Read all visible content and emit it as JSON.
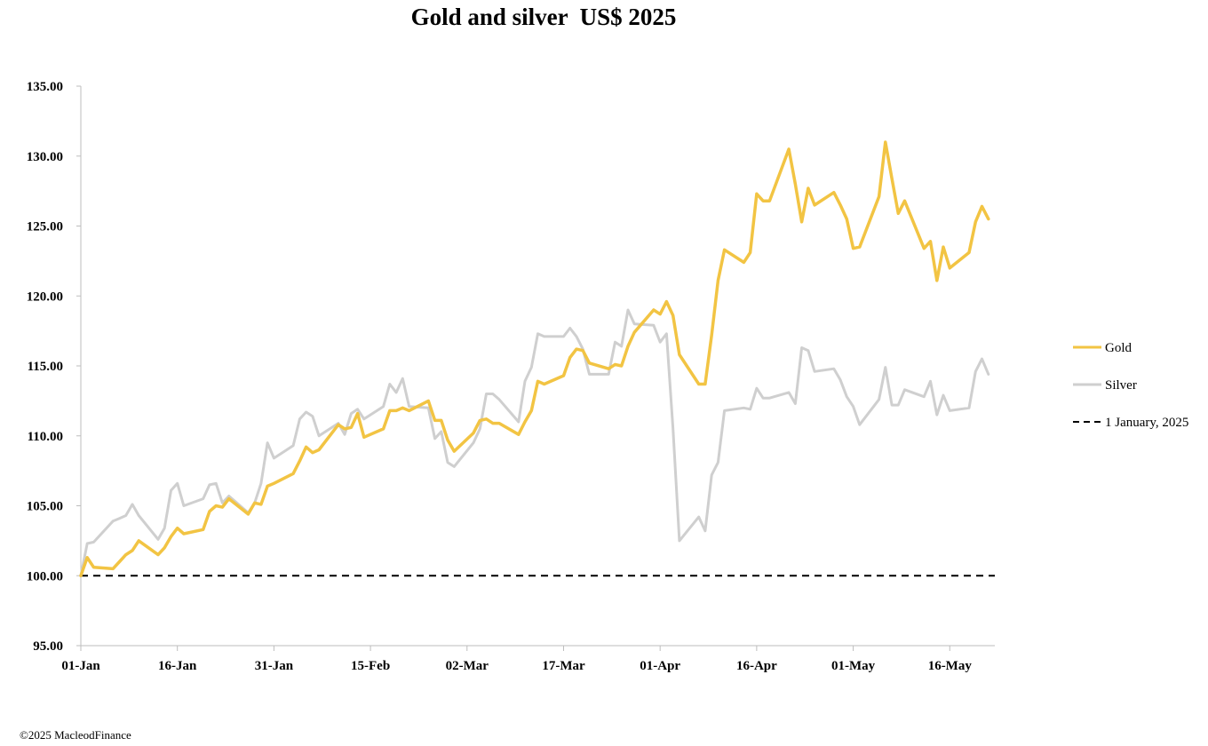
{
  "chart_data": {
    "type": "line",
    "title": "Gold and silver  US$ 2025",
    "xlabel": "",
    "ylabel": "",
    "ylim": [
      95,
      135
    ],
    "yticks": [
      "95.00",
      "100.00",
      "105.00",
      "110.00",
      "115.00",
      "120.00",
      "125.00",
      "130.00",
      "135.00"
    ],
    "xlim": [
      "2025-01-01",
      "2025-05-23"
    ],
    "xticks": [
      "01-Jan",
      "16-Jan",
      "31-Jan",
      "15-Feb",
      "02-Mar",
      "17-Mar",
      "01-Apr",
      "16-Apr",
      "01-May",
      "16-May"
    ],
    "grid": false,
    "legend_position": "right",
    "series": [
      {
        "name": "Gold",
        "color": "#F2C443",
        "points": [
          [
            "2025-01-01",
            100.0
          ],
          [
            "2025-01-02",
            101.3
          ],
          [
            "2025-01-03",
            100.6
          ],
          [
            "2025-01-06",
            100.5
          ],
          [
            "2025-01-07",
            101.0
          ],
          [
            "2025-01-08",
            101.5
          ],
          [
            "2025-01-09",
            101.8
          ],
          [
            "2025-01-10",
            102.5
          ],
          [
            "2025-01-13",
            101.5
          ],
          [
            "2025-01-14",
            102.0
          ],
          [
            "2025-01-15",
            102.8
          ],
          [
            "2025-01-16",
            103.4
          ],
          [
            "2025-01-17",
            103.0
          ],
          [
            "2025-01-20",
            103.3
          ],
          [
            "2025-01-21",
            104.6
          ],
          [
            "2025-01-22",
            105.0
          ],
          [
            "2025-01-23",
            104.9
          ],
          [
            "2025-01-24",
            105.5
          ],
          [
            "2025-01-27",
            104.4
          ],
          [
            "2025-01-28",
            105.2
          ],
          [
            "2025-01-29",
            105.1
          ],
          [
            "2025-01-30",
            106.4
          ],
          [
            "2025-01-31",
            106.6
          ],
          [
            "2025-02-03",
            107.3
          ],
          [
            "2025-02-04",
            108.2
          ],
          [
            "2025-02-05",
            109.2
          ],
          [
            "2025-02-06",
            108.8
          ],
          [
            "2025-02-07",
            109.0
          ],
          [
            "2025-02-10",
            110.8
          ],
          [
            "2025-02-11",
            110.5
          ],
          [
            "2025-02-12",
            110.6
          ],
          [
            "2025-02-13",
            111.6
          ],
          [
            "2025-02-14",
            109.9
          ],
          [
            "2025-02-17",
            110.5
          ],
          [
            "2025-02-18",
            111.8
          ],
          [
            "2025-02-19",
            111.8
          ],
          [
            "2025-02-20",
            112.0
          ],
          [
            "2025-02-21",
            111.8
          ],
          [
            "2025-02-24",
            112.5
          ],
          [
            "2025-02-25",
            111.1
          ],
          [
            "2025-02-26",
            111.1
          ],
          [
            "2025-02-27",
            109.7
          ],
          [
            "2025-02-28",
            108.9
          ],
          [
            "2025-03-03",
            110.2
          ],
          [
            "2025-03-04",
            111.1
          ],
          [
            "2025-03-05",
            111.2
          ],
          [
            "2025-03-06",
            110.9
          ],
          [
            "2025-03-07",
            110.9
          ],
          [
            "2025-03-10",
            110.1
          ],
          [
            "2025-03-11",
            111.0
          ],
          [
            "2025-03-12",
            111.8
          ],
          [
            "2025-03-13",
            113.9
          ],
          [
            "2025-03-14",
            113.7
          ],
          [
            "2025-03-17",
            114.3
          ],
          [
            "2025-03-18",
            115.6
          ],
          [
            "2025-03-19",
            116.2
          ],
          [
            "2025-03-20",
            116.1
          ],
          [
            "2025-03-21",
            115.2
          ],
          [
            "2025-03-24",
            114.8
          ],
          [
            "2025-03-25",
            115.1
          ],
          [
            "2025-03-26",
            115.0
          ],
          [
            "2025-03-27",
            116.4
          ],
          [
            "2025-03-28",
            117.4
          ],
          [
            "2025-03-31",
            119.0
          ],
          [
            "2025-04-01",
            118.7
          ],
          [
            "2025-04-02",
            119.6
          ],
          [
            "2025-04-03",
            118.6
          ],
          [
            "2025-04-04",
            115.8
          ],
          [
            "2025-04-07",
            113.7
          ],
          [
            "2025-04-08",
            113.7
          ],
          [
            "2025-04-09",
            117.2
          ],
          [
            "2025-04-10",
            121.1
          ],
          [
            "2025-04-11",
            123.3
          ],
          [
            "2025-04-14",
            122.4
          ],
          [
            "2025-04-15",
            123.1
          ],
          [
            "2025-04-16",
            127.3
          ],
          [
            "2025-04-17",
            126.8
          ],
          [
            "2025-04-18",
            126.8
          ],
          [
            "2025-04-21",
            130.5
          ],
          [
            "2025-04-22",
            128.0
          ],
          [
            "2025-04-23",
            125.3
          ],
          [
            "2025-04-24",
            127.7
          ],
          [
            "2025-04-25",
            126.5
          ],
          [
            "2025-04-28",
            127.4
          ],
          [
            "2025-04-29",
            126.5
          ],
          [
            "2025-04-30",
            125.5
          ],
          [
            "2025-05-01",
            123.4
          ],
          [
            "2025-05-02",
            123.5
          ],
          [
            "2025-05-05",
            127.1
          ],
          [
            "2025-05-06",
            131.0
          ],
          [
            "2025-05-07",
            128.4
          ],
          [
            "2025-05-08",
            125.9
          ],
          [
            "2025-05-09",
            126.8
          ],
          [
            "2025-05-12",
            123.4
          ],
          [
            "2025-05-13",
            123.9
          ],
          [
            "2025-05-14",
            121.1
          ],
          [
            "2025-05-15",
            123.5
          ],
          [
            "2025-05-16",
            122.0
          ],
          [
            "2025-05-19",
            123.1
          ],
          [
            "2025-05-20",
            125.3
          ],
          [
            "2025-05-21",
            126.4
          ],
          [
            "2025-05-22",
            125.5
          ]
        ]
      },
      {
        "name": "Silver",
        "color": "#CFCFCF",
        "points": [
          [
            "2025-01-01",
            100.0
          ],
          [
            "2025-01-02",
            102.3
          ],
          [
            "2025-01-03",
            102.4
          ],
          [
            "2025-01-06",
            103.9
          ],
          [
            "2025-01-07",
            104.1
          ],
          [
            "2025-01-08",
            104.3
          ],
          [
            "2025-01-09",
            105.1
          ],
          [
            "2025-01-10",
            104.3
          ],
          [
            "2025-01-13",
            102.6
          ],
          [
            "2025-01-14",
            103.4
          ],
          [
            "2025-01-15",
            106.1
          ],
          [
            "2025-01-16",
            106.6
          ],
          [
            "2025-01-17",
            105.0
          ],
          [
            "2025-01-20",
            105.5
          ],
          [
            "2025-01-21",
            106.5
          ],
          [
            "2025-01-22",
            106.6
          ],
          [
            "2025-01-23",
            105.2
          ],
          [
            "2025-01-24",
            105.7
          ],
          [
            "2025-01-27",
            104.5
          ],
          [
            "2025-01-28",
            105.2
          ],
          [
            "2025-01-29",
            106.6
          ],
          [
            "2025-01-30",
            109.5
          ],
          [
            "2025-01-31",
            108.4
          ],
          [
            "2025-02-03",
            109.3
          ],
          [
            "2025-02-04",
            111.2
          ],
          [
            "2025-02-05",
            111.7
          ],
          [
            "2025-02-06",
            111.4
          ],
          [
            "2025-02-07",
            110.0
          ],
          [
            "2025-02-10",
            110.9
          ],
          [
            "2025-02-11",
            110.1
          ],
          [
            "2025-02-12",
            111.6
          ],
          [
            "2025-02-13",
            111.9
          ],
          [
            "2025-02-14",
            111.2
          ],
          [
            "2025-02-17",
            112.1
          ],
          [
            "2025-02-18",
            113.7
          ],
          [
            "2025-02-19",
            113.1
          ],
          [
            "2025-02-20",
            114.1
          ],
          [
            "2025-02-21",
            112.1
          ],
          [
            "2025-02-24",
            112.0
          ],
          [
            "2025-02-25",
            109.8
          ],
          [
            "2025-02-26",
            110.3
          ],
          [
            "2025-02-27",
            108.1
          ],
          [
            "2025-02-28",
            107.8
          ],
          [
            "2025-03-03",
            109.5
          ],
          [
            "2025-03-04",
            110.5
          ],
          [
            "2025-03-05",
            113.0
          ],
          [
            "2025-03-06",
            113.0
          ],
          [
            "2025-03-07",
            112.6
          ],
          [
            "2025-03-10",
            111.0
          ],
          [
            "2025-03-11",
            113.9
          ],
          [
            "2025-03-12",
            114.9
          ],
          [
            "2025-03-13",
            117.3
          ],
          [
            "2025-03-14",
            117.1
          ],
          [
            "2025-03-17",
            117.1
          ],
          [
            "2025-03-18",
            117.7
          ],
          [
            "2025-03-19",
            117.1
          ],
          [
            "2025-03-20",
            116.2
          ],
          [
            "2025-03-21",
            114.4
          ],
          [
            "2025-03-24",
            114.4
          ],
          [
            "2025-03-25",
            116.7
          ],
          [
            "2025-03-26",
            116.4
          ],
          [
            "2025-03-27",
            119.0
          ],
          [
            "2025-03-28",
            118.0
          ],
          [
            "2025-03-31",
            117.9
          ],
          [
            "2025-04-01",
            116.7
          ],
          [
            "2025-04-02",
            117.3
          ],
          [
            "2025-04-03",
            110.5
          ],
          [
            "2025-04-04",
            102.5
          ],
          [
            "2025-04-07",
            104.2
          ],
          [
            "2025-04-08",
            103.2
          ],
          [
            "2025-04-09",
            107.2
          ],
          [
            "2025-04-10",
            108.1
          ],
          [
            "2025-04-11",
            111.8
          ],
          [
            "2025-04-14",
            112.0
          ],
          [
            "2025-04-15",
            111.9
          ],
          [
            "2025-04-16",
            113.4
          ],
          [
            "2025-04-17",
            112.7
          ],
          [
            "2025-04-18",
            112.7
          ],
          [
            "2025-04-21",
            113.1
          ],
          [
            "2025-04-22",
            112.3
          ],
          [
            "2025-04-23",
            116.3
          ],
          [
            "2025-04-24",
            116.1
          ],
          [
            "2025-04-25",
            114.6
          ],
          [
            "2025-04-28",
            114.8
          ],
          [
            "2025-04-29",
            114.0
          ],
          [
            "2025-04-30",
            112.8
          ],
          [
            "2025-05-01",
            112.1
          ],
          [
            "2025-05-02",
            110.8
          ],
          [
            "2025-05-05",
            112.6
          ],
          [
            "2025-05-06",
            114.9
          ],
          [
            "2025-05-07",
            112.2
          ],
          [
            "2025-05-08",
            112.2
          ],
          [
            "2025-05-09",
            113.3
          ],
          [
            "2025-05-12",
            112.8
          ],
          [
            "2025-05-13",
            113.9
          ],
          [
            "2025-05-14",
            111.5
          ],
          [
            "2025-05-15",
            112.9
          ],
          [
            "2025-05-16",
            111.8
          ],
          [
            "2025-05-19",
            112.0
          ],
          [
            "2025-05-20",
            114.6
          ],
          [
            "2025-05-21",
            115.5
          ],
          [
            "2025-05-22",
            114.4
          ]
        ]
      },
      {
        "name": "1 January, 2025",
        "color": "#000000",
        "style": "dashed",
        "points": [
          [
            "2025-01-01",
            100.0
          ],
          [
            "2025-05-23",
            100.0
          ]
        ]
      }
    ],
    "footer": "©2025 MacleodFinance"
  }
}
